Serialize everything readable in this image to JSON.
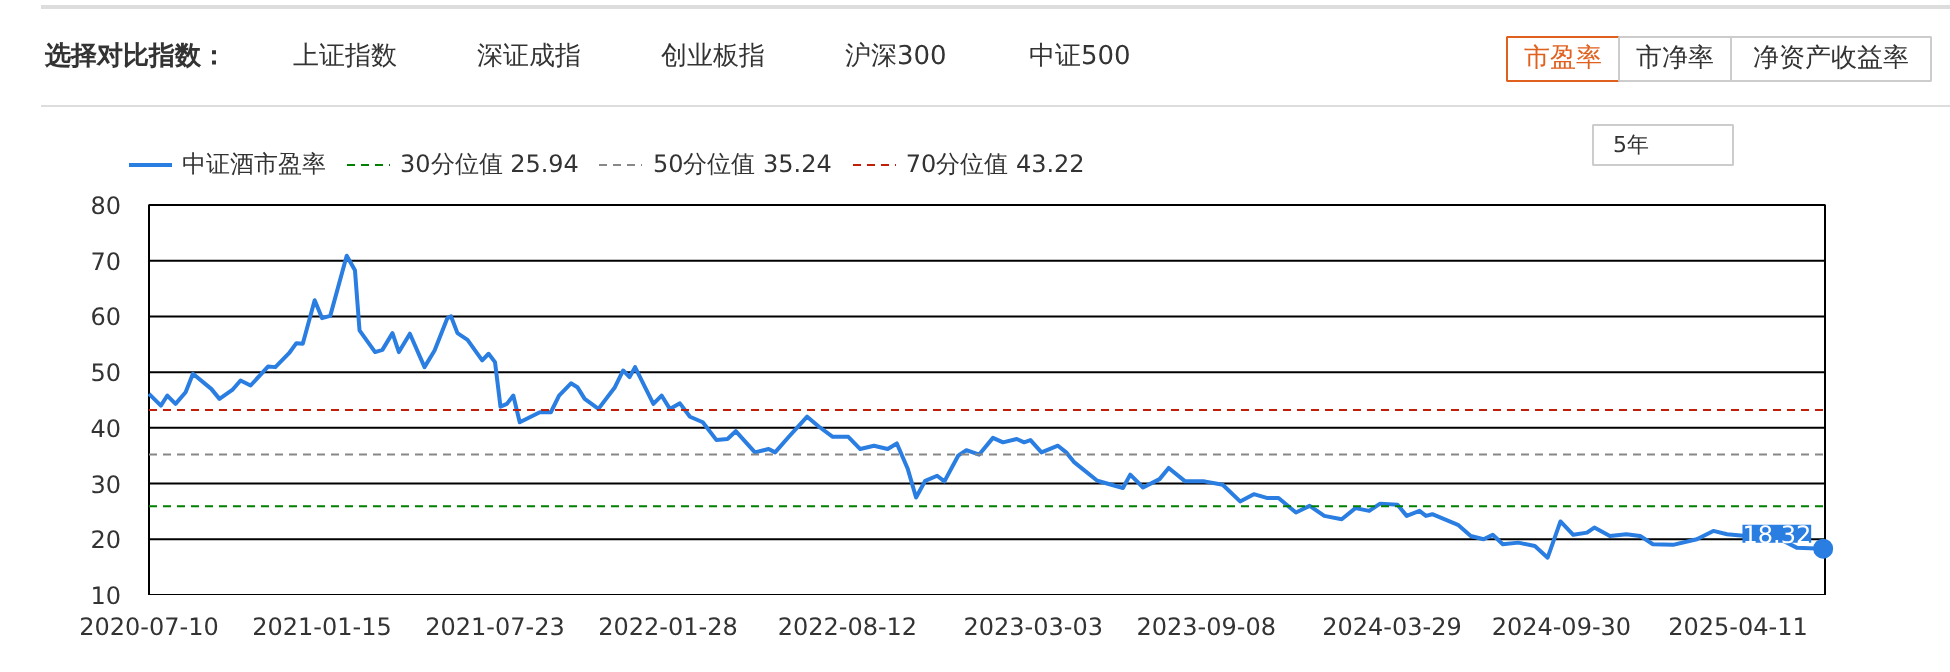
{
  "chart_data": {
    "type": "line",
    "annotations": [
      "选择对比指数：",
      "上证指数",
      "深证成指",
      "创业板指",
      "沪深300",
      "中证500",
      "市盈率",
      "市净率",
      "净资产收益率",
      "5年",
      {
        "text": "18.32",
        "x": "2025-07-13",
        "y": 18.32
      }
    ],
    "x": [
      "2020-07-10",
      "2020-07-23",
      "2020-07-30",
      "2020-08-08",
      "2020-08-19",
      "2020-08-27",
      "2020-09-16",
      "2020-09-25",
      "2020-10-09",
      "2020-10-18",
      "2020-10-29",
      "2020-11-17",
      "2020-11-25",
      "2020-12-10",
      "2020-12-18",
      "2020-12-25",
      "2021-01-07",
      "2021-01-15",
      "2021-01-24",
      "2021-02-11",
      "2021-02-20",
      "2021-02-25",
      "2021-03-14",
      "2021-03-22",
      "2021-04-02",
      "2021-04-09",
      "2021-04-21",
      "2021-05-07",
      "2021-05-18",
      "2021-06-01",
      "2021-06-05",
      "2021-06-12",
      "2021-06-23",
      "2021-07-09",
      "2021-07-16",
      "2021-07-23",
      "2021-07-29",
      "2021-08-05",
      "2021-08-12",
      "2021-08-19",
      "2021-09-10",
      "2021-09-22",
      "2021-10-01",
      "2021-10-14",
      "2021-10-21",
      "2021-10-29",
      "2021-11-13",
      "2021-12-01",
      "2021-12-10",
      "2021-12-17",
      "2021-12-23",
      "2022-01-12",
      "2022-01-21",
      "2022-01-30",
      "2022-02-10",
      "2022-02-21",
      "2022-03-07",
      "2022-03-22",
      "2022-04-03",
      "2022-04-12",
      "2022-05-03",
      "2022-05-18",
      "2022-05-25",
      "2022-06-09",
      "2022-06-29",
      "2022-07-12",
      "2022-07-27",
      "2022-08-13",
      "2022-08-26",
      "2022-09-10",
      "2022-09-25",
      "2022-10-05",
      "2022-10-17",
      "2022-10-26",
      "2022-11-05",
      "2022-11-18",
      "2022-11-26",
      "2022-12-11",
      "2022-12-20",
      "2023-01-03",
      "2023-01-18",
      "2023-01-29",
      "2023-02-13",
      "2023-02-21",
      "2023-02-28",
      "2023-03-12",
      "2023-03-30",
      "2023-04-08",
      "2023-04-17",
      "2023-05-12",
      "2023-06-09",
      "2023-06-17",
      "2023-07-01",
      "2023-07-19",
      "2023-07-29",
      "2023-08-16",
      "2023-09-06",
      "2023-09-26",
      "2023-10-15",
      "2023-10-30",
      "2023-11-14",
      "2023-11-26",
      "2023-12-15",
      "2023-12-30",
      "2024-01-15",
      "2024-02-03",
      "2024-02-18",
      "2024-03-04",
      "2024-03-16",
      "2024-04-04",
      "2024-04-14",
      "2024-04-28",
      "2024-05-05",
      "2024-05-12",
      "2024-06-09",
      "2024-06-23",
      "2024-07-07",
      "2024-07-17",
      "2024-07-28",
      "2024-08-14",
      "2024-09-01",
      "2024-09-15",
      "2024-09-29",
      "2024-10-13",
      "2024-10-28",
      "2024-11-05",
      "2024-11-22",
      "2024-12-10",
      "2024-12-25",
      "2025-01-08",
      "2025-01-30",
      "2025-02-25",
      "2025-03-15",
      "2025-03-30",
      "2025-04-20",
      "2025-05-27",
      "2025-06-14",
      "2025-07-13"
    ],
    "series": [
      {
        "name": "中证酒市盈率",
        "color": "#2a7de1",
        "values": [
          46.1,
          44.0,
          45.8,
          44.3,
          46.4,
          49.7,
          47.0,
          45.2,
          46.8,
          48.5,
          47.6,
          51.0,
          50.9,
          53.4,
          55.2,
          55.1,
          62.9,
          59.7,
          60.1,
          70.9,
          68.3,
          57.5,
          53.6,
          54.0,
          57.0,
          53.6,
          56.9,
          50.9,
          53.9,
          59.7,
          60.0,
          57.0,
          55.8,
          52.1,
          53.3,
          51.8,
          43.8,
          44.3,
          45.8,
          41.0,
          42.8,
          42.8,
          45.8,
          48.0,
          47.3,
          45.2,
          43.4,
          47.3,
          50.3,
          49.1,
          50.9,
          44.3,
          45.8,
          43.4,
          44.4,
          42.0,
          41.0,
          37.8,
          38.0,
          39.4,
          35.6,
          36.2,
          35.6,
          38.4,
          42.0,
          40.2,
          38.4,
          38.4,
          36.2,
          36.8,
          36.2,
          37.2,
          32.6,
          27.5,
          30.5,
          31.4,
          30.4,
          35.0,
          36.0,
          35.2,
          38.2,
          37.4,
          38.0,
          37.4,
          37.8,
          35.6,
          36.8,
          35.6,
          33.8,
          30.5,
          29.2,
          31.6,
          29.3,
          30.8,
          32.8,
          30.4,
          30.4,
          29.8,
          26.8,
          28.1,
          27.4,
          27.4,
          24.8,
          26.0,
          24.2,
          23.6,
          25.6,
          25.1,
          26.4,
          26.2,
          24.2,
          25.1,
          24.2,
          24.5,
          22.6,
          20.6,
          20.0,
          20.8,
          19.1,
          19.4,
          18.8,
          16.7,
          23.2,
          20.8,
          21.2,
          22.1,
          20.6,
          20.9,
          20.6,
          19.1,
          19.0,
          20.0,
          21.5,
          20.9,
          20.6,
          20.0,
          18.5,
          18.32
        ]
      }
    ],
    "ref_lines": [
      {
        "axis": "y",
        "value": 25.94,
        "label": "30分位值 25.94",
        "color": "#008000",
        "line_style": "dashed"
      },
      {
        "axis": "y",
        "value": 35.24,
        "label": "50分位值 35.24",
        "color": "#888888",
        "line_style": "dashed"
      },
      {
        "axis": "y",
        "value": 43.22,
        "label": "70分位值 43.22",
        "color": "#c0200a",
        "line_style": "dashed"
      }
    ],
    "xlim": [
      "2020-07-10",
      "2025-07-15"
    ],
    "xticks": [
      "2020-07-10",
      "2021-01-15",
      "2021-07-23",
      "2022-01-28",
      "2022-08-12",
      "2023-03-03",
      "2023-09-08",
      "2024-03-29",
      "2024-09-30",
      "2025-04-11"
    ],
    "ylim": [
      10,
      80
    ],
    "yticks": [
      10,
      20,
      30,
      40,
      50,
      60,
      70,
      80
    ],
    "grid": "y",
    "legend": "top left",
    "marker": "none",
    "line_style": "solid"
  }
}
